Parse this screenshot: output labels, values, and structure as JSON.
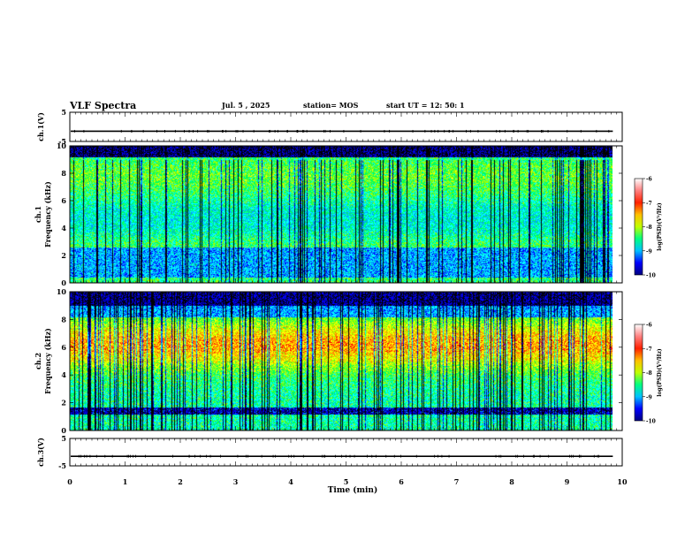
{
  "header": {
    "title": "VLF Spectra",
    "date": "Jul. 5 , 2025",
    "station": "station= MOS",
    "start_ut": "start UT = 12: 50: 1"
  },
  "chart_data": {
    "type": "heatmap",
    "x_label": "Time (min)",
    "x_range": [
      0,
      10
    ],
    "x_ticks": [
      "0",
      "1",
      "2",
      "3",
      "4",
      "5",
      "6",
      "7",
      "8",
      "9",
      "10"
    ],
    "panels": [
      {
        "id": "ch1-waveform",
        "kind": "line",
        "ylabel": "ch.1(V)",
        "ylim": [
          -5,
          5
        ],
        "y_ticks": [
          "5",
          "-5"
        ],
        "baseline_value": -1.5,
        "data_end_min": 9.83
      },
      {
        "id": "ch1-spectrogram",
        "kind": "heatmap",
        "ylabel_channel": "ch.1",
        "ylabel": "Frequency (kHz)",
        "ylim": [
          0,
          10
        ],
        "y_ticks": [
          "0",
          "2",
          "4",
          "6",
          "8",
          "10"
        ],
        "data_end_min": 9.83,
        "colorbar": {
          "label": "log(PSD)(V²/Hz)",
          "range": [
            -10,
            -6
          ],
          "ticks": [
            "-6",
            "-7",
            "-8",
            "-9",
            "-10"
          ]
        }
      },
      {
        "id": "ch2-spectrogram",
        "kind": "heatmap",
        "ylabel_channel": "ch.2",
        "ylabel": "Frequency (kHz)",
        "ylim": [
          0,
          10
        ],
        "y_ticks": [
          "0",
          "2",
          "4",
          "6",
          "8",
          "10"
        ],
        "data_end_min": 9.83,
        "colorbar": {
          "label": "log(PSD)(V²/Hz)",
          "range": [
            -10,
            -6
          ],
          "ticks": [
            "-6",
            "-7",
            "-8",
            "-9",
            "-10"
          ]
        }
      },
      {
        "id": "ch3-waveform",
        "kind": "line",
        "ylabel": "ch.3(V)",
        "ylim": [
          -5,
          5
        ],
        "y_ticks": [
          "5",
          "-5"
        ],
        "baseline_value": -1.5,
        "data_end_min": 9.83
      }
    ],
    "colormap": [
      "#000080",
      "#0000ff",
      "#00a0ff",
      "#00ffff",
      "#00ff60",
      "#a0ff00",
      "#ffff00",
      "#ff8000",
      "#ff0000",
      "#ffffff"
    ]
  }
}
